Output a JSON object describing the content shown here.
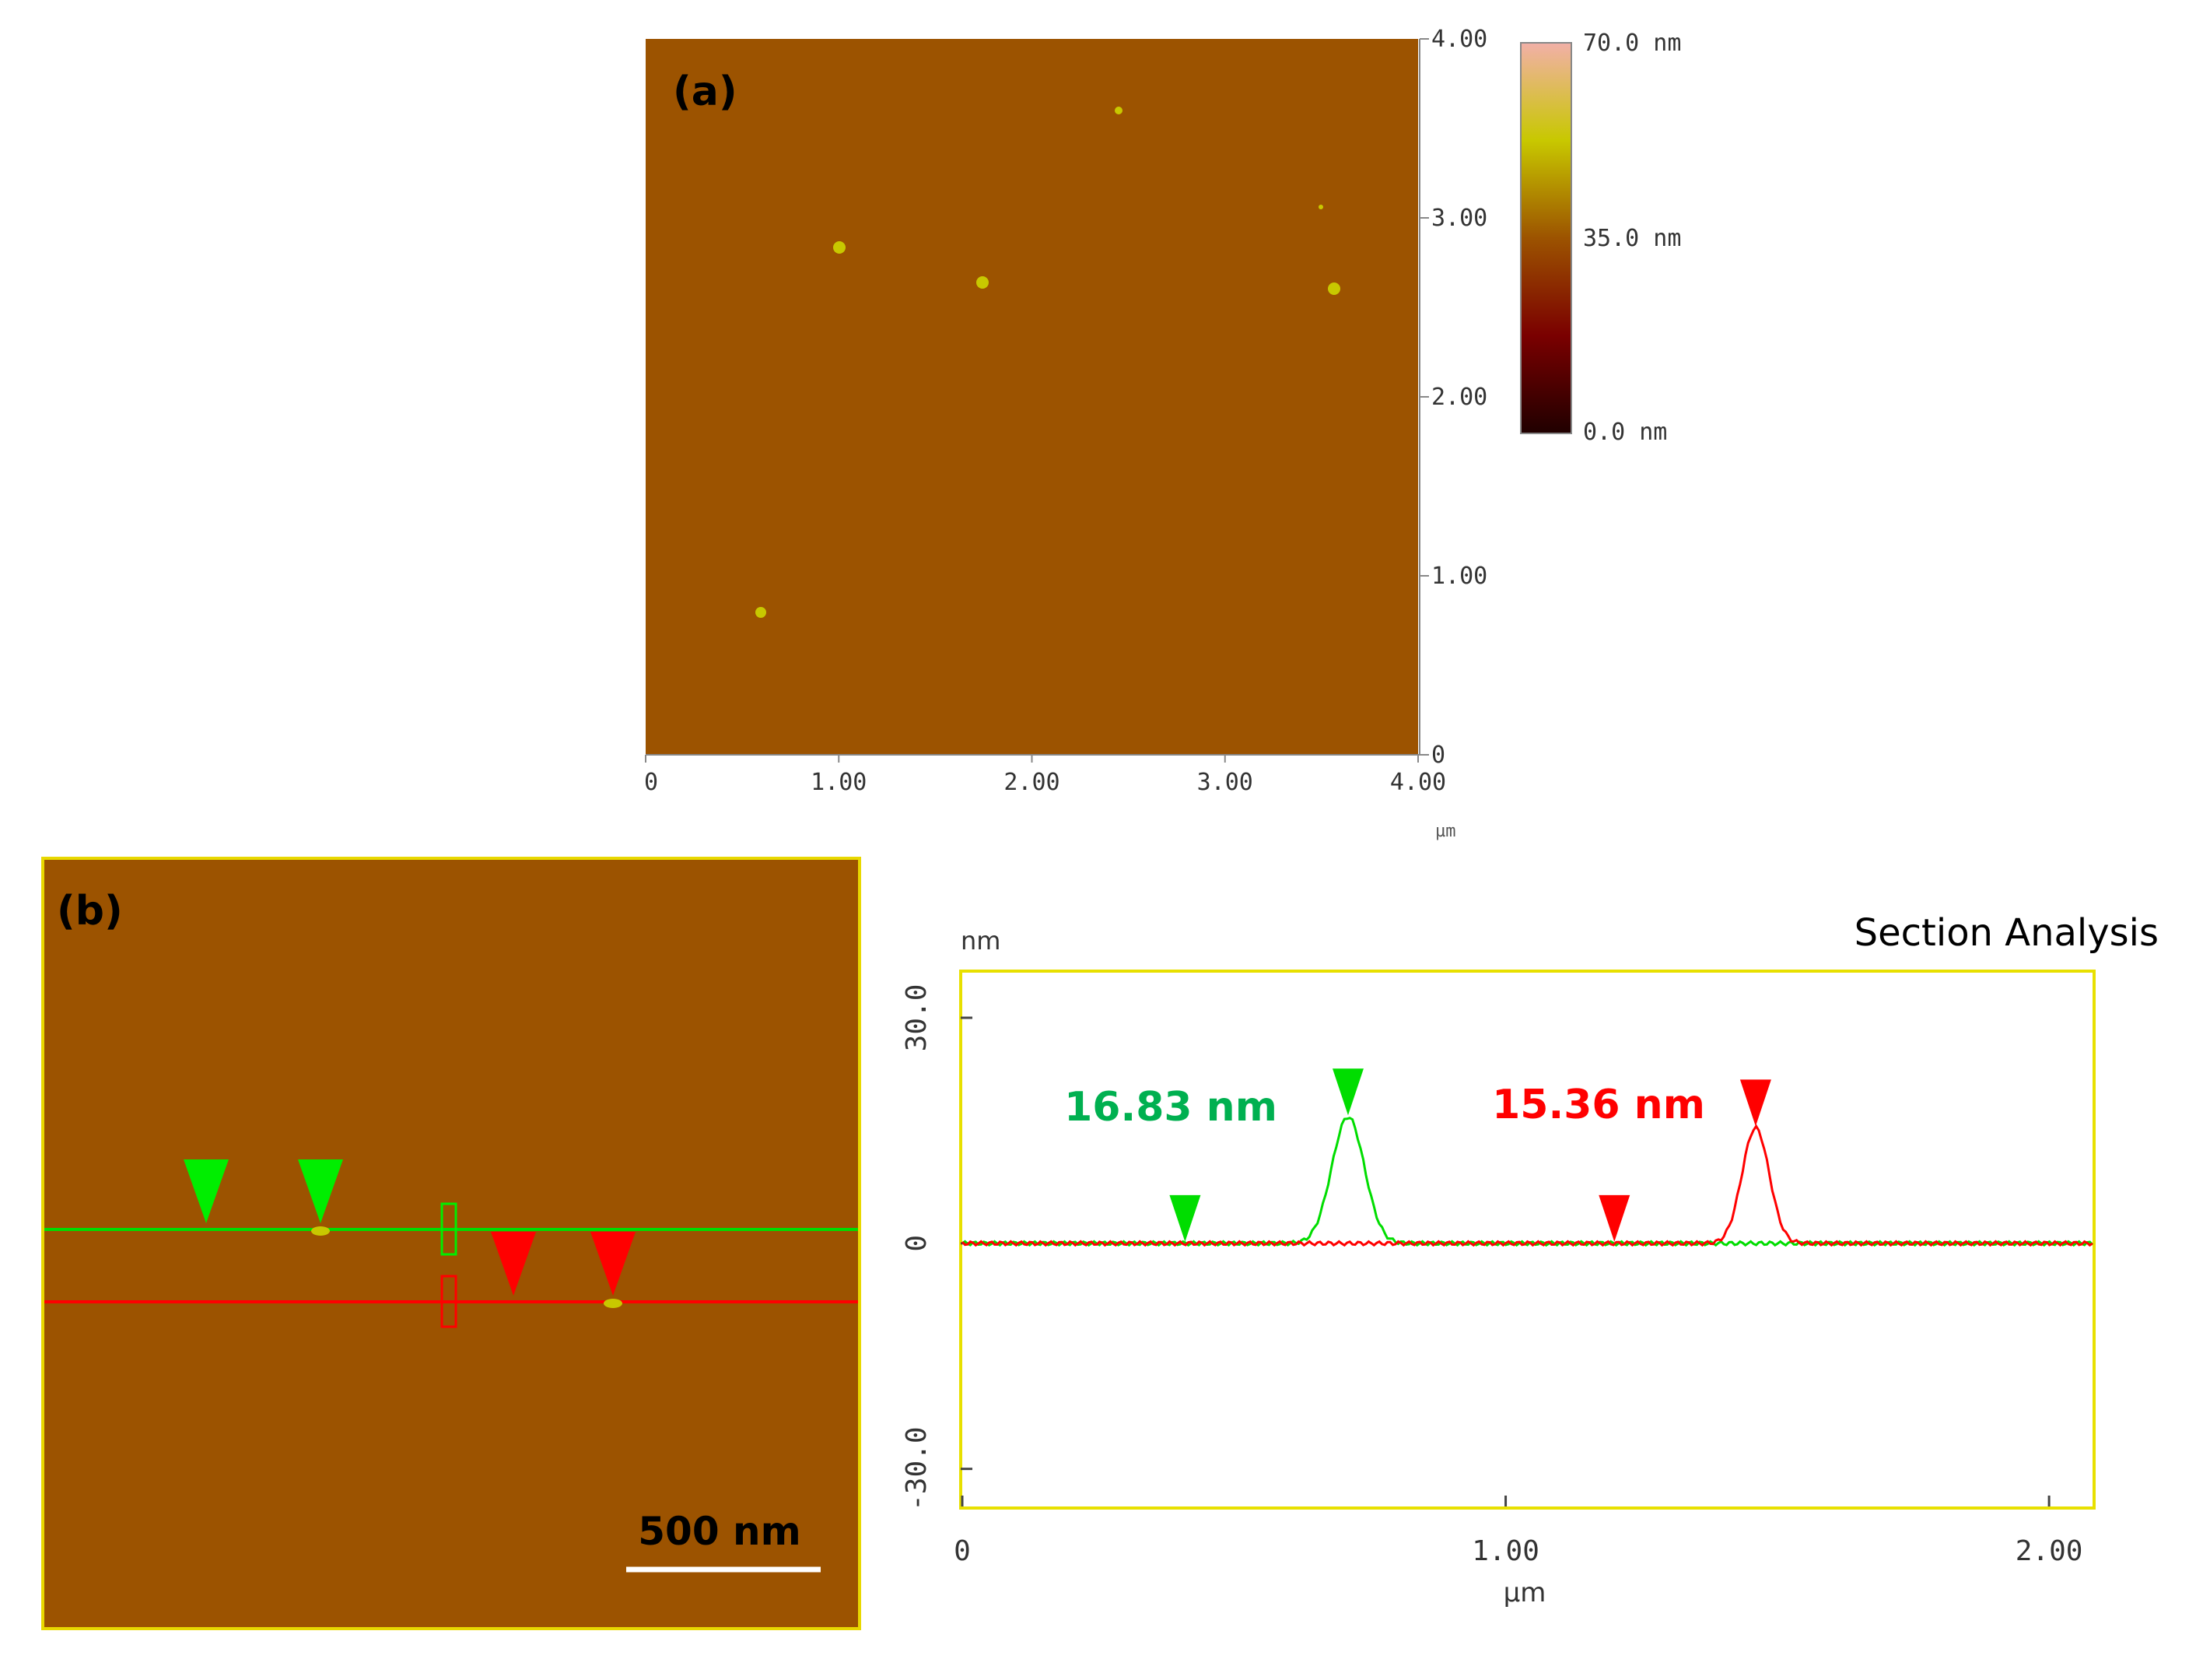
{
  "panel_a": {
    "label": "(a)",
    "x_ticks": [
      "0",
      "1.00",
      "2.00",
      "3.00",
      "4.00"
    ],
    "y_ticks": [
      "0",
      "1.00",
      "2.00",
      "3.00",
      "4.00"
    ],
    "x_unit": "µm",
    "colorbar": {
      "max": "70.0 nm",
      "mid": "35.0 nm",
      "min": "0.0 nm"
    },
    "colors": {
      "surface": "#9c5300",
      "particle": "#c8c800"
    }
  },
  "panel_b": {
    "label": "(b)",
    "scale_bar": "500 nm",
    "colors": {
      "surface": "#9c5300",
      "green": "#00dd00",
      "red": "#ff0000"
    }
  },
  "chart_data": {
    "type": "line",
    "title": "Section Analysis",
    "xlabel": "µm",
    "ylabel": "nm",
    "xlim": [
      0,
      2.08
    ],
    "ylim": [
      -35,
      36
    ],
    "x_ticks": [
      "0",
      "1.00",
      "2.00"
    ],
    "y_ticks": [
      "30.0",
      "0",
      "-30.0"
    ],
    "series": [
      {
        "color": "#00dd00",
        "peak_x": 0.71,
        "peak_height": 16.83,
        "peak_width": 0.03
      },
      {
        "color": "#ff0000",
        "peak_x": 1.46,
        "peak_height": 15.36,
        "peak_width": 0.025
      }
    ],
    "annotations": [
      {
        "text": "16.83 nm",
        "color": "#00b050"
      },
      {
        "text": "15.36 nm",
        "color": "#ff0000"
      }
    ],
    "markers": [
      {
        "color": "#00dd00",
        "x": 0.41,
        "y": 0
      },
      {
        "color": "#00dd00",
        "x": 0.71,
        "y": 16.83
      },
      {
        "color": "#ff0000",
        "x": 1.2,
        "y": 0
      },
      {
        "color": "#ff0000",
        "x": 1.46,
        "y": 15.36
      }
    ]
  }
}
